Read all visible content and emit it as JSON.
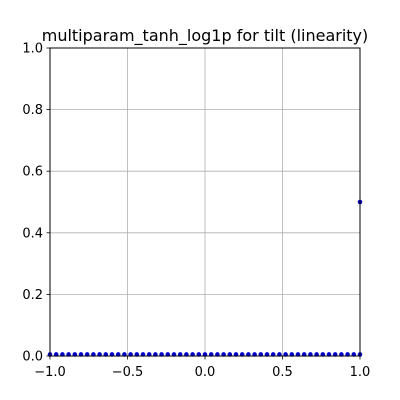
{
  "chart_data": {
    "type": "scatter",
    "title": "multiparam_tanh_log1p for tilt (linearity)",
    "xlabel": "",
    "ylabel": "",
    "xlim": [
      -1.0,
      1.0
    ],
    "ylim": [
      0.0,
      1.0
    ],
    "grid": true,
    "x_ticks": [
      "−1.0",
      "−0.5",
      "0.0",
      "0.5",
      "1.0"
    ],
    "y_ticks": [
      "0.0",
      "0.2",
      "0.4",
      "0.6",
      "0.8",
      "1.0"
    ],
    "series": [
      {
        "color": "#0000cc",
        "x": [
          -1.0,
          -0.96,
          -0.92,
          -0.88,
          -0.84,
          -0.8,
          -0.76,
          -0.72,
          -0.68,
          -0.64,
          -0.6,
          -0.56,
          -0.52,
          -0.48,
          -0.44,
          -0.4,
          -0.36,
          -0.32,
          -0.28,
          -0.24,
          -0.2,
          -0.16,
          -0.12,
          -0.08,
          -0.04,
          0.0,
          0.04,
          0.08,
          0.12,
          0.16,
          0.2,
          0.24,
          0.28,
          0.32,
          0.36,
          0.4,
          0.44,
          0.48,
          0.52,
          0.56,
          0.6,
          0.64,
          0.68,
          0.72,
          0.76,
          0.8,
          0.84,
          0.88,
          0.92,
          0.96,
          1.0,
          1.0
        ],
        "y": [
          0.005,
          0.005,
          0.005,
          0.005,
          0.005,
          0.005,
          0.005,
          0.005,
          0.005,
          0.005,
          0.005,
          0.005,
          0.005,
          0.005,
          0.005,
          0.005,
          0.005,
          0.005,
          0.005,
          0.005,
          0.005,
          0.005,
          0.005,
          0.005,
          0.005,
          0.005,
          0.005,
          0.005,
          0.005,
          0.005,
          0.005,
          0.005,
          0.005,
          0.005,
          0.005,
          0.005,
          0.005,
          0.005,
          0.005,
          0.005,
          0.005,
          0.005,
          0.005,
          0.005,
          0.005,
          0.005,
          0.005,
          0.005,
          0.005,
          0.005,
          0.005,
          0.5
        ]
      }
    ]
  }
}
